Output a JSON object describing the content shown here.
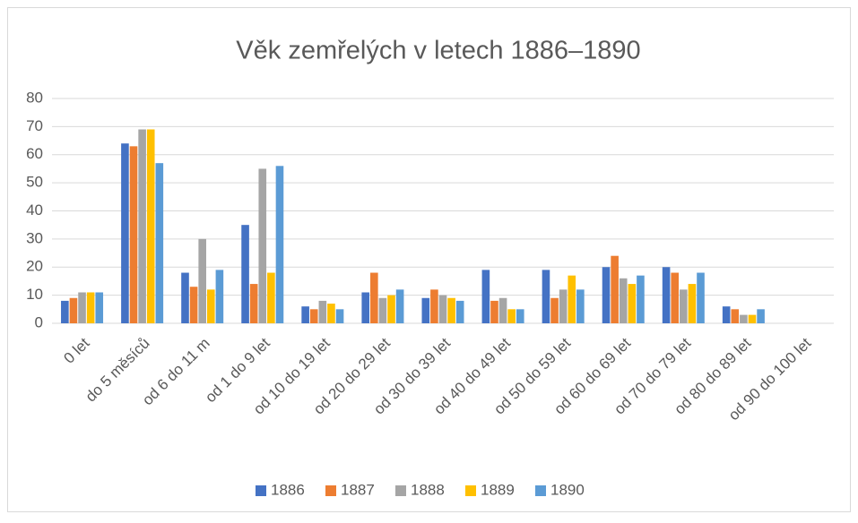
{
  "chart_data": {
    "type": "bar",
    "title": "Věk zemřelých v letech 1886–1890",
    "categories": [
      "0 let",
      "do 5 měsíců",
      "od 6 do 11 m",
      "od 1 do 9 let",
      "od 10 do 19 let",
      "od 20 do 29 let",
      "od 30 do 39 let",
      "od 40 do 49 let",
      "od 50 do 59 let",
      "od 60 do 69 let",
      "od 70 do 79 let",
      "od 80 do 89 let",
      "od 90 do 100 let"
    ],
    "series": [
      {
        "name": "1886",
        "color": "#4472c4",
        "values": [
          8,
          64,
          18,
          35,
          6,
          11,
          9,
          19,
          19,
          20,
          20,
          6,
          0
        ]
      },
      {
        "name": "1887",
        "color": "#ed7d31",
        "values": [
          9,
          63,
          13,
          14,
          5,
          18,
          12,
          8,
          9,
          24,
          18,
          5,
          0
        ]
      },
      {
        "name": "1888",
        "color": "#a5a5a5",
        "values": [
          11,
          69,
          30,
          55,
          8,
          9,
          10,
          9,
          12,
          16,
          12,
          3,
          0
        ]
      },
      {
        "name": "1889",
        "color": "#ffc000",
        "values": [
          11,
          69,
          12,
          18,
          7,
          10,
          9,
          5,
          17,
          14,
          14,
          3,
          0
        ]
      },
      {
        "name": "1890",
        "color": "#5b9bd5",
        "values": [
          11,
          57,
          19,
          56,
          5,
          12,
          8,
          5,
          12,
          17,
          18,
          5,
          0
        ]
      }
    ],
    "ylim": [
      0,
      80
    ],
    "yticks": [
      0,
      10,
      20,
      30,
      40,
      50,
      60,
      70,
      80
    ],
    "grid": true,
    "legend": "bottom"
  }
}
